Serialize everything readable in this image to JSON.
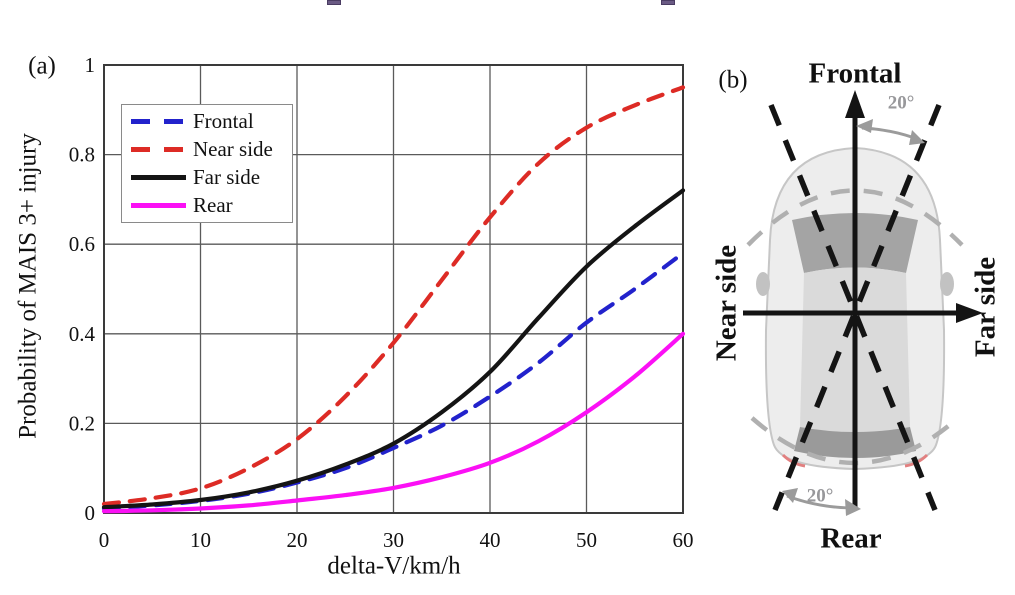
{
  "panel_a": {
    "label": "(a)"
  },
  "panel_b": {
    "label": "(b)"
  },
  "chart_data": {
    "type": "line",
    "title": "",
    "xlabel": "delta-V/km/h",
    "ylabel": "Probability of MAIS 3+ injury",
    "xlim": [
      0,
      60
    ],
    "ylim": [
      0,
      1
    ],
    "xticks": [
      0,
      10,
      20,
      30,
      40,
      50,
      60
    ],
    "yticks": [
      0,
      0.2,
      0.4,
      0.6,
      0.8,
      1
    ],
    "ytick_labels": [
      "0",
      "0.2",
      "0.4",
      "0.6",
      "0.8",
      "1"
    ],
    "grid": true,
    "grid_color": "#5a5a5a",
    "axis_box_color": "#3a3a3a",
    "legend_position": "upper-left",
    "x": [
      0,
      5,
      10,
      15,
      20,
      25,
      30,
      35,
      40,
      45,
      50,
      55,
      60
    ],
    "series": [
      {
        "name": "Frontal",
        "color": "#2222cc",
        "style": "dashed",
        "values": [
          0.01,
          0.017,
          0.027,
          0.043,
          0.068,
          0.1,
          0.145,
          0.195,
          0.26,
          0.335,
          0.425,
          0.5,
          0.58
        ]
      },
      {
        "name": "Near side",
        "color": "#dd2b25",
        "style": "dashed",
        "values": [
          0.02,
          0.033,
          0.055,
          0.1,
          0.165,
          0.26,
          0.38,
          0.52,
          0.66,
          0.78,
          0.86,
          0.91,
          0.95
        ]
      },
      {
        "name": "Far side",
        "color": "#141414",
        "style": "solid",
        "values": [
          0.013,
          0.019,
          0.029,
          0.046,
          0.072,
          0.108,
          0.155,
          0.225,
          0.315,
          0.435,
          0.55,
          0.64,
          0.72
        ]
      },
      {
        "name": "Rear",
        "color": "#fb10f5",
        "style": "solid",
        "values": [
          0.004,
          0.006,
          0.01,
          0.017,
          0.028,
          0.04,
          0.056,
          0.08,
          0.112,
          0.16,
          0.225,
          0.305,
          0.4
        ]
      }
    ]
  },
  "diagram": {
    "label_top": "Frontal",
    "label_bottom": "Rear",
    "label_left": "Near side",
    "label_right": "Far side",
    "angle_top": "20°",
    "angle_bottom": "20°",
    "sector_half_angle_deg": 20,
    "axis_color": "#141414",
    "angle_marker_color": "#9b9b9b"
  }
}
